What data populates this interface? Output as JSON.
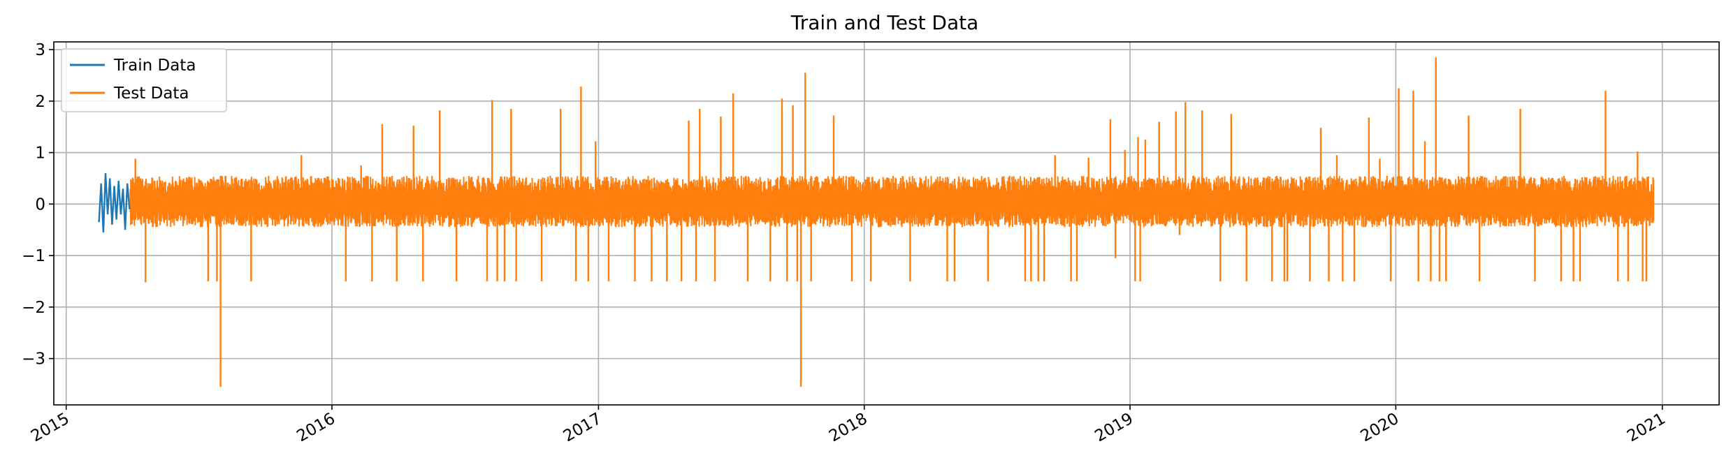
{
  "chart_data": {
    "type": "line",
    "title": "Train and Test Data",
    "xlabel": "",
    "ylabel": "",
    "xlim": [
      "2014-12-15",
      "2021-03-20"
    ],
    "ylim": [
      -3.9,
      3.15
    ],
    "x_ticks": [
      "2015",
      "2016",
      "2017",
      "2018",
      "2019",
      "2020",
      "2021"
    ],
    "y_ticks": [
      -3,
      -2,
      -1,
      0,
      1,
      2,
      3
    ],
    "y_tick_labels": [
      "−3",
      "−2",
      "−1",
      "0",
      "1",
      "2",
      "3"
    ],
    "grid": true,
    "legend": "top-left",
    "series": [
      {
        "name": "Train Data",
        "color": "#1f77b4",
        "x": [
          "2015-02-15",
          "2015-02-18",
          "2015-02-21",
          "2015-02-24",
          "2015-02-27",
          "2015-03-02",
          "2015-03-05",
          "2015-03-08",
          "2015-03-11",
          "2015-03-14",
          "2015-03-17",
          "2015-03-20",
          "2015-03-23",
          "2015-03-26",
          "2015-03-29"
        ],
        "values": [
          -0.35,
          0.4,
          -0.55,
          0.6,
          -0.2,
          0.5,
          -0.4,
          0.35,
          -0.3,
          0.45,
          -0.2,
          0.3,
          -0.5,
          0.4,
          -0.1
        ]
      },
      {
        "name": "Test Data",
        "color": "#ff7f0e",
        "range": [
          "2015-03-30",
          "2020-12-20"
        ],
        "base": {
          "low": -0.3,
          "high": 0.55
        },
        "spikes": [
          {
            "x": "2015-04-06",
            "y": 0.88
          },
          {
            "x": "2015-04-20",
            "y": -1.52
          },
          {
            "x": "2015-07-15",
            "y": -1.5
          },
          {
            "x": "2015-07-27",
            "y": -1.5
          },
          {
            "x": "2015-08-01",
            "y": -3.55
          },
          {
            "x": "2015-09-12",
            "y": -1.5
          },
          {
            "x": "2015-11-20",
            "y": 0.95
          },
          {
            "x": "2016-01-20",
            "y": -1.5
          },
          {
            "x": "2016-02-10",
            "y": 0.75
          },
          {
            "x": "2016-02-25",
            "y": -1.5
          },
          {
            "x": "2016-03-10",
            "y": 1.55
          },
          {
            "x": "2016-03-30",
            "y": -1.5
          },
          {
            "x": "2016-04-22",
            "y": 1.52
          },
          {
            "x": "2016-05-05",
            "y": -1.5
          },
          {
            "x": "2016-05-28",
            "y": 1.82
          },
          {
            "x": "2016-06-20",
            "y": -1.5
          },
          {
            "x": "2016-08-01",
            "y": -1.5
          },
          {
            "x": "2016-08-08",
            "y": 2.02
          },
          {
            "x": "2016-08-15",
            "y": -1.5
          },
          {
            "x": "2016-08-25",
            "y": -1.5
          },
          {
            "x": "2016-09-03",
            "y": 1.85
          },
          {
            "x": "2016-09-10",
            "y": -1.5
          },
          {
            "x": "2016-10-15",
            "y": -1.5
          },
          {
            "x": "2016-11-10",
            "y": 1.85
          },
          {
            "x": "2016-12-01",
            "y": -1.5
          },
          {
            "x": "2016-12-08",
            "y": 2.28
          },
          {
            "x": "2016-12-18",
            "y": -1.5
          },
          {
            "x": "2016-12-28",
            "y": 1.22
          },
          {
            "x": "2017-01-15",
            "y": -1.5
          },
          {
            "x": "2017-02-20",
            "y": -1.5
          },
          {
            "x": "2017-03-15",
            "y": -1.5
          },
          {
            "x": "2017-04-05",
            "y": -1.5
          },
          {
            "x": "2017-04-25",
            "y": -1.5
          },
          {
            "x": "2017-05-05",
            "y": 1.62
          },
          {
            "x": "2017-05-15",
            "y": -1.5
          },
          {
            "x": "2017-05-20",
            "y": 1.85
          },
          {
            "x": "2017-06-10",
            "y": -1.5
          },
          {
            "x": "2017-06-18",
            "y": 1.7
          },
          {
            "x": "2017-07-05",
            "y": 2.15
          },
          {
            "x": "2017-07-25",
            "y": -1.5
          },
          {
            "x": "2017-08-25",
            "y": -1.5
          },
          {
            "x": "2017-09-10",
            "y": 2.05
          },
          {
            "x": "2017-09-17",
            "y": -1.5
          },
          {
            "x": "2017-09-25",
            "y": 1.92
          },
          {
            "x": "2017-10-01",
            "y": -1.5
          },
          {
            "x": "2017-10-06",
            "y": -3.55
          },
          {
            "x": "2017-10-12",
            "y": 2.55
          },
          {
            "x": "2017-10-20",
            "y": -1.5
          },
          {
            "x": "2017-11-20",
            "y": 1.72
          },
          {
            "x": "2017-12-15",
            "y": -1.5
          },
          {
            "x": "2018-01-10",
            "y": -1.5
          },
          {
            "x": "2018-03-05",
            "y": -1.5
          },
          {
            "x": "2018-04-25",
            "y": -1.5
          },
          {
            "x": "2018-05-05",
            "y": -1.5
          },
          {
            "x": "2018-06-20",
            "y": -1.5
          },
          {
            "x": "2018-08-10",
            "y": -1.5
          },
          {
            "x": "2018-08-18",
            "y": -1.5
          },
          {
            "x": "2018-08-28",
            "y": -1.5
          },
          {
            "x": "2018-09-05",
            "y": -1.5
          },
          {
            "x": "2018-09-20",
            "y": 0.95
          },
          {
            "x": "2018-10-12",
            "y": -1.5
          },
          {
            "x": "2018-10-20",
            "y": -1.5
          },
          {
            "x": "2018-11-05",
            "y": 0.9
          },
          {
            "x": "2018-12-05",
            "y": 1.65
          },
          {
            "x": "2018-12-12",
            "y": -1.05
          },
          {
            "x": "2018-12-25",
            "y": 1.05
          },
          {
            "x": "2019-01-08",
            "y": -1.5
          },
          {
            "x": "2019-01-12",
            "y": 1.3
          },
          {
            "x": "2019-01-15",
            "y": -1.5
          },
          {
            "x": "2019-01-22",
            "y": 1.25
          },
          {
            "x": "2019-02-10",
            "y": 1.6
          },
          {
            "x": "2019-03-05",
            "y": 1.8
          },
          {
            "x": "2019-03-10",
            "y": -0.6
          },
          {
            "x": "2019-03-18",
            "y": 1.98
          },
          {
            "x": "2019-04-10",
            "y": 1.82
          },
          {
            "x": "2019-05-05",
            "y": -1.5
          },
          {
            "x": "2019-05-20",
            "y": 1.75
          },
          {
            "x": "2019-06-10",
            "y": -1.5
          },
          {
            "x": "2019-07-15",
            "y": -1.5
          },
          {
            "x": "2019-08-01",
            "y": -1.5
          },
          {
            "x": "2019-08-05",
            "y": -1.5
          },
          {
            "x": "2019-09-05",
            "y": -1.5
          },
          {
            "x": "2019-09-20",
            "y": 1.48
          },
          {
            "x": "2019-10-01",
            "y": -1.5
          },
          {
            "x": "2019-10-12",
            "y": 0.95
          },
          {
            "x": "2019-10-20",
            "y": -1.5
          },
          {
            "x": "2019-11-05",
            "y": -1.5
          },
          {
            "x": "2019-11-25",
            "y": 1.68
          },
          {
            "x": "2019-12-10",
            "y": 0.88
          },
          {
            "x": "2019-12-25",
            "y": -1.5
          },
          {
            "x": "2020-01-05",
            "y": 2.25
          },
          {
            "x": "2020-01-25",
            "y": 2.2
          },
          {
            "x": "2020-02-01",
            "y": -1.5
          },
          {
            "x": "2020-02-10",
            "y": 1.22
          },
          {
            "x": "2020-02-18",
            "y": -1.5
          },
          {
            "x": "2020-02-25",
            "y": 2.85
          },
          {
            "x": "2020-03-01",
            "y": -1.5
          },
          {
            "x": "2020-03-10",
            "y": -1.5
          },
          {
            "x": "2020-04-10",
            "y": 1.72
          },
          {
            "x": "2020-04-25",
            "y": -1.5
          },
          {
            "x": "2020-06-20",
            "y": 1.85
          },
          {
            "x": "2020-07-10",
            "y": -1.5
          },
          {
            "x": "2020-08-15",
            "y": -1.5
          },
          {
            "x": "2020-09-01",
            "y": -1.5
          },
          {
            "x": "2020-09-10",
            "y": -1.5
          },
          {
            "x": "2020-10-15",
            "y": 2.2
          },
          {
            "x": "2020-11-01",
            "y": -1.5
          },
          {
            "x": "2020-11-15",
            "y": -1.5
          },
          {
            "x": "2020-11-28",
            "y": 1.02
          },
          {
            "x": "2020-12-05",
            "y": -1.5
          },
          {
            "x": "2020-12-10",
            "y": -1.5
          }
        ]
      }
    ]
  }
}
